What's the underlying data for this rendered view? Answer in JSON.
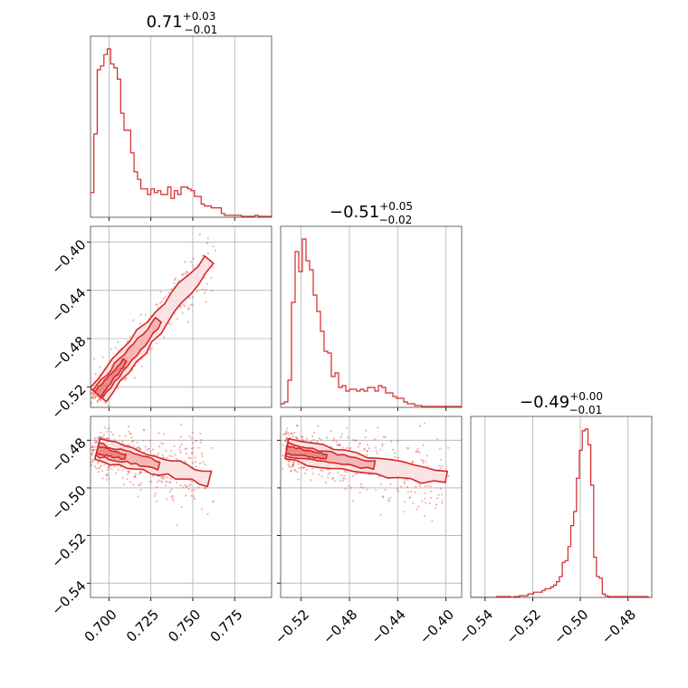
{
  "colors": {
    "series": "#d62728",
    "fill_inner": "#f4b6b6",
    "fill_outer": "#fbe3e3"
  },
  "chart_data": {
    "type": "corner",
    "grid": true,
    "params": [
      {
        "title_value": "0.71",
        "title_upper": "+0.03",
        "title_lower": "−0.01",
        "range": [
          0.689,
          0.797
        ],
        "ticks": [
          0.7,
          0.725,
          0.75,
          0.775
        ],
        "tick_labels": [
          "0.700",
          "0.725",
          "0.750",
          "0.775"
        ]
      },
      {
        "title_value": "−0.51",
        "title_upper": "+0.05",
        "title_lower": "−0.02",
        "range": [
          -0.537,
          -0.387
        ],
        "ticks": [
          -0.52,
          -0.48,
          -0.44,
          -0.4
        ],
        "tick_labels": [
          "−0.52",
          "−0.48",
          "−0.44",
          "−0.40"
        ]
      },
      {
        "title_value": "−0.49",
        "title_upper": "+0.00",
        "title_lower": "−0.01",
        "range": [
          -0.546,
          -0.47
        ],
        "ticks": [
          -0.54,
          -0.52,
          -0.5,
          -0.48
        ],
        "tick_labels": [
          "−0.54",
          "−0.52",
          "−0.50",
          "−0.48"
        ]
      }
    ],
    "histograms": [
      {
        "param": 0,
        "bin_start": 0.689,
        "bin_width": 0.002,
        "values": [
          0.13,
          0.44,
          0.78,
          0.8,
          0.86,
          0.89,
          0.81,
          0.79,
          0.73,
          0.55,
          0.46,
          0.46,
          0.34,
          0.24,
          0.2,
          0.15,
          0.15,
          0.12,
          0.15,
          0.13,
          0.14,
          0.12,
          0.12,
          0.16,
          0.1,
          0.14,
          0.12,
          0.16,
          0.16,
          0.15,
          0.14,
          0.11,
          0.11,
          0.07,
          0.06,
          0.06,
          0.05,
          0.05,
          0.05,
          0.02,
          0.01,
          0.01,
          0.01,
          0.01,
          0.01,
          0.005,
          0.005,
          0.005,
          0.005,
          0.01,
          0.005,
          0.005,
          0.005,
          0.005
        ]
      },
      {
        "param": 1,
        "bin_start": -0.537,
        "bin_width": 0.003,
        "values": [
          0.02,
          0.03,
          0.15,
          0.58,
          0.86,
          0.75,
          0.93,
          0.81,
          0.76,
          0.62,
          0.53,
          0.42,
          0.31,
          0.3,
          0.17,
          0.19,
          0.11,
          0.12,
          0.09,
          0.1,
          0.1,
          0.09,
          0.1,
          0.09,
          0.11,
          0.11,
          0.09,
          0.12,
          0.11,
          0.08,
          0.08,
          0.06,
          0.05,
          0.05,
          0.03,
          0.02,
          0.02,
          0.01,
          0.01,
          0.005,
          0.005,
          0.005,
          0.005,
          0.005,
          0.005,
          0.005,
          0.005,
          0.005,
          0.005,
          0.005
        ]
      },
      {
        "param": 2,
        "bin_start": -0.546,
        "bin_width": 0.0012,
        "values": [
          0,
          0,
          0,
          0,
          0,
          0,
          0,
          0,
          0,
          0.005,
          0.005,
          0.005,
          0.005,
          0.005,
          0,
          0.005,
          0.005,
          0.01,
          0.01,
          0.01,
          0.02,
          0.02,
          0.03,
          0.03,
          0.03,
          0.04,
          0.05,
          0.05,
          0.06,
          0.07,
          0.09,
          0.12,
          0.2,
          0.21,
          0.29,
          0.41,
          0.49,
          0.68,
          0.84,
          0.95,
          0.96,
          0.87,
          0.64,
          0.23,
          0.12,
          0.11,
          0.02,
          0.01,
          0.005,
          0.005,
          0.005,
          0.005,
          0.005,
          0.005,
          0.005,
          0.005,
          0.005,
          0.005,
          0.005,
          0.005,
          0.005,
          0.005,
          0
        ]
      }
    ],
    "pairs": [
      {
        "x_param": 0,
        "y_param": 1,
        "core": {
          "x0": 0.693,
          "y0": -0.526,
          "x1": 0.76,
          "y1": -0.415
        },
        "spread": 0.005
      },
      {
        "x_param": 0,
        "y_param": 2,
        "core": {
          "x0": 0.693,
          "y0": -0.484,
          "x1": 0.76,
          "y1": -0.496
        },
        "spread": 0.004
      },
      {
        "x_param": 1,
        "y_param": 2,
        "core": {
          "x0": -0.532,
          "y0": -0.484,
          "x1": -0.4,
          "y1": -0.496
        },
        "spread": 0.004
      }
    ]
  }
}
